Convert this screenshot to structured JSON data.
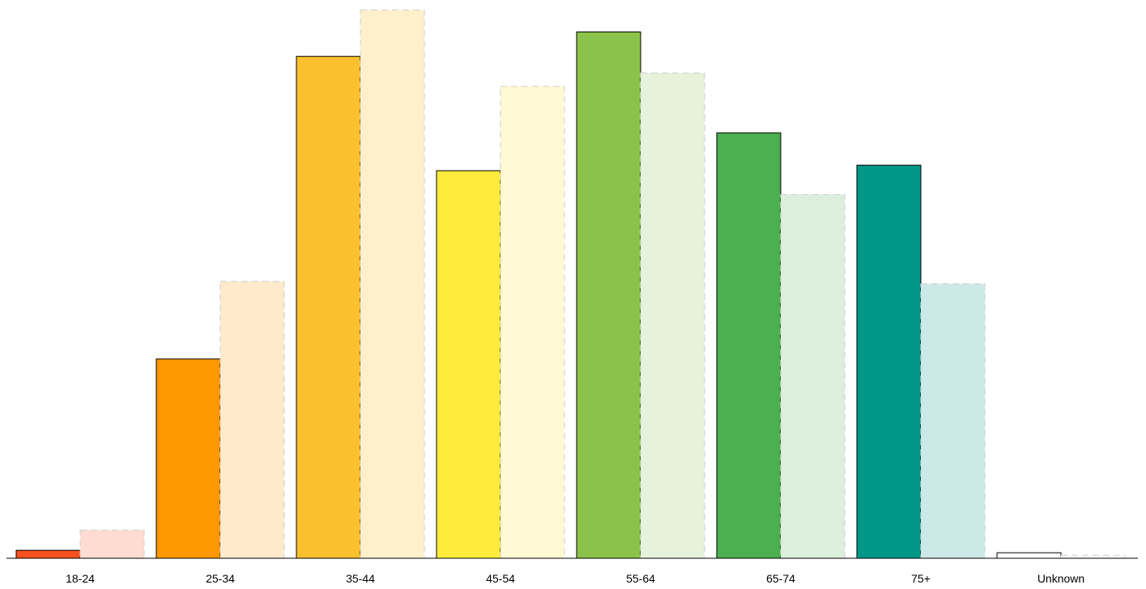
{
  "chart_data": {
    "type": "bar",
    "title": "",
    "xlabel": "",
    "ylabel": "",
    "categories": [
      "18-24",
      "25-34",
      "35-44",
      "45-54",
      "55-64",
      "65-74",
      "75+",
      "Unknown"
    ],
    "series": [
      {
        "values": [
          1.3,
          32.6,
          82.1,
          63.4,
          86.1,
          69.6,
          64.3,
          0.9
        ],
        "style": "solid",
        "colors": [
          "#f4511e",
          "#ff9800",
          "#fbc02d",
          "#ffeb3b",
          "#8bc34a",
          "#4caf50",
          "#009688",
          "#ffffff"
        ]
      },
      {
        "values": [
          4.6,
          45.3,
          89.7,
          77.2,
          79.4,
          59.5,
          44.9,
          0.5
        ],
        "style": "faded-dashed",
        "colors": [
          "#ffdcd2",
          "#ffeacc",
          "#fff0cc",
          "#fff9d4",
          "#e6f2db",
          "#dcefdd",
          "#cce9e7",
          "#ffffff"
        ]
      }
    ],
    "ylim": [
      0,
      90
    ],
    "grid": false,
    "legend": "none"
  }
}
